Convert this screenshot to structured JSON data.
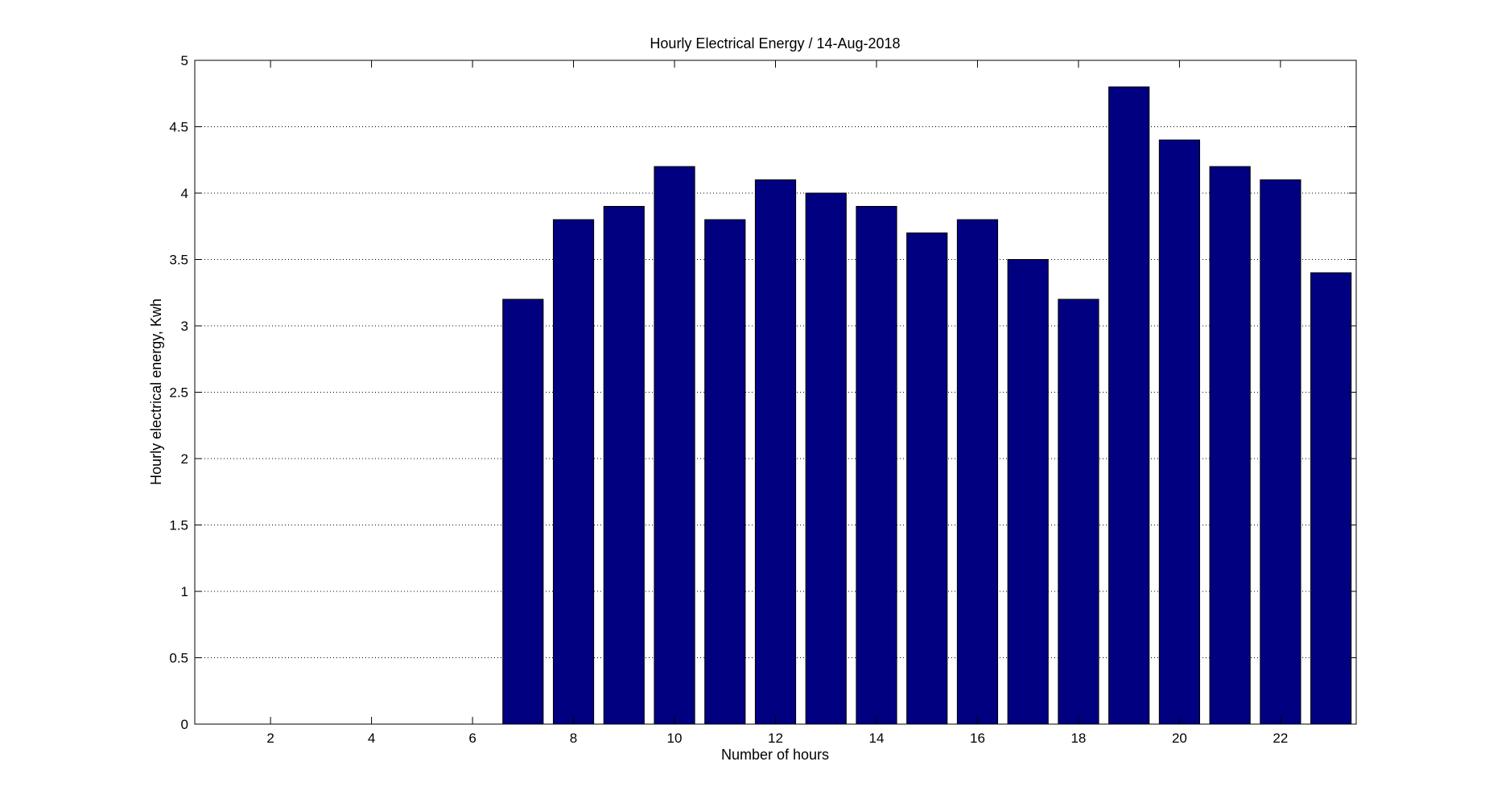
{
  "chart_data": {
    "type": "bar",
    "title": "Hourly Electrical Energy / 14-Aug-2018",
    "xlabel": "Number of hours",
    "ylabel": "Hourly electrical energy, Kwh",
    "x": [
      7,
      8,
      9,
      10,
      11,
      12,
      13,
      14,
      15,
      16,
      17,
      18,
      19,
      20,
      21,
      22,
      23
    ],
    "values": [
      3.2,
      3.8,
      3.9,
      4.2,
      3.8,
      4.1,
      4.0,
      3.9,
      3.7,
      3.8,
      3.5,
      3.2,
      4.8,
      4.4,
      4.2,
      4.1,
      3.4
    ],
    "xlim": [
      0.5,
      23.5
    ],
    "ylim": [
      0,
      5
    ],
    "xticks": [
      2,
      4,
      6,
      8,
      10,
      12,
      14,
      16,
      18,
      20,
      22
    ],
    "xtick_labels": [
      "2",
      "4",
      "6",
      "8",
      "10",
      "12",
      "14",
      "16",
      "18",
      "20",
      "22"
    ],
    "yticks": [
      0,
      0.5,
      1,
      1.5,
      2,
      2.5,
      3,
      3.5,
      4,
      4.5,
      5
    ],
    "ytick_labels": [
      "0",
      "0.5",
      "1",
      "1.5",
      "2",
      "2.5",
      "3",
      "3.5",
      "4",
      "4.5",
      "5"
    ],
    "grid": "horizontal-dotted",
    "bar_color": "#000080"
  }
}
